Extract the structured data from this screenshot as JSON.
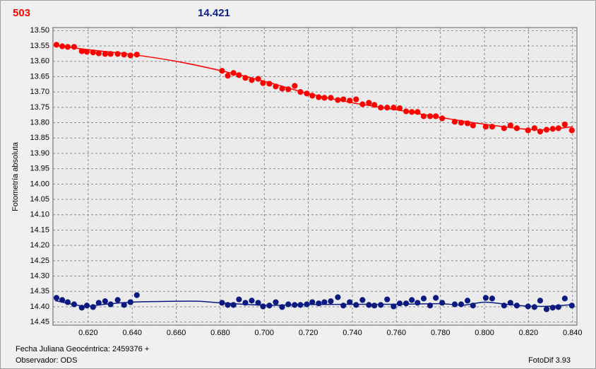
{
  "chart_data": {
    "type": "scatter",
    "label_left": "503",
    "label_right": "14.421",
    "y_label": "Fotometría absoluta",
    "footer_left_1": "Fecha Juliana Geocéntrica: 2459376 +",
    "footer_left_2": "Observador: ODS",
    "footer_right": "FotoDif 3.93",
    "label_left_color": "#ff0000",
    "label_right_color": "#0a1e8c",
    "y_inverted": true,
    "grid": true,
    "xlim": [
      0.604,
      0.842
    ],
    "ylim": [
      13.49,
      14.46
    ],
    "xticks": [
      {
        "value": 0.62,
        "label": "0.620"
      },
      {
        "value": 0.64,
        "label": "0.640"
      },
      {
        "value": 0.66,
        "label": "0.660"
      },
      {
        "value": 0.68,
        "label": "0.680"
      },
      {
        "value": 0.7,
        "label": "0.700"
      },
      {
        "value": 0.72,
        "label": "0.720"
      },
      {
        "value": 0.74,
        "label": "0.740"
      },
      {
        "value": 0.76,
        "label": "0.760"
      },
      {
        "value": 0.78,
        "label": "0.780"
      },
      {
        "value": 0.8,
        "label": "0.800"
      },
      {
        "value": 0.82,
        "label": "0.820"
      },
      {
        "value": 0.84,
        "label": "0.840"
      }
    ],
    "yticks": [
      {
        "value": 13.5,
        "label": "13.50"
      },
      {
        "value": 13.55,
        "label": "13.55"
      },
      {
        "value": 13.6,
        "label": "13.60"
      },
      {
        "value": 13.65,
        "label": "13.65"
      },
      {
        "value": 13.7,
        "label": "13.70"
      },
      {
        "value": 13.75,
        "label": "13.75"
      },
      {
        "value": 13.8,
        "label": "13.80"
      },
      {
        "value": 13.85,
        "label": "13.85"
      },
      {
        "value": 13.9,
        "label": "13.90"
      },
      {
        "value": 13.95,
        "label": "13.95"
      },
      {
        "value": 14.0,
        "label": "14.00"
      },
      {
        "value": 14.05,
        "label": "14.05"
      },
      {
        "value": 14.1,
        "label": "14.10"
      },
      {
        "value": 14.15,
        "label": "14.15"
      },
      {
        "value": 14.2,
        "label": "14.20"
      },
      {
        "value": 14.25,
        "label": "14.25"
      },
      {
        "value": 14.3,
        "label": "14.30"
      },
      {
        "value": 14.35,
        "label": "14.35"
      },
      {
        "value": 14.4,
        "label": "14.40"
      },
      {
        "value": 14.45,
        "label": "14.45"
      }
    ],
    "series": [
      {
        "color": "#ff0000",
        "x": [
          0.6056,
          0.6082,
          0.6107,
          0.6136,
          0.6171,
          0.6194,
          0.6222,
          0.6248,
          0.6277,
          0.6302,
          0.6334,
          0.6363,
          0.6392,
          0.6421,
          0.6808,
          0.6834,
          0.686,
          0.6885,
          0.6914,
          0.6943,
          0.6972,
          0.6994,
          0.7023,
          0.7052,
          0.7081,
          0.7109,
          0.7138,
          0.7164,
          0.7193,
          0.7218,
          0.7247,
          0.7273,
          0.7302,
          0.7334,
          0.7359,
          0.7388,
          0.7417,
          0.7446,
          0.7475,
          0.75,
          0.7529,
          0.7558,
          0.7587,
          0.7615,
          0.7644,
          0.767,
          0.7696,
          0.7724,
          0.7753,
          0.7779,
          0.7808,
          0.7865,
          0.7894,
          0.7923,
          0.7948,
          0.8006,
          0.8035,
          0.8089,
          0.8118,
          0.8147,
          0.8198,
          0.8227,
          0.8253,
          0.8282,
          0.831,
          0.8336,
          0.8365,
          0.8397
        ],
        "values": [
          13.546,
          13.551,
          13.553,
          13.553,
          13.567,
          13.569,
          13.571,
          13.574,
          13.576,
          13.576,
          13.576,
          13.578,
          13.581,
          13.578,
          13.631,
          13.647,
          13.638,
          13.645,
          13.654,
          13.661,
          13.657,
          13.671,
          13.673,
          13.682,
          13.689,
          13.691,
          13.68,
          13.7,
          13.705,
          13.712,
          13.717,
          13.719,
          13.719,
          13.726,
          13.724,
          13.728,
          13.724,
          13.74,
          13.735,
          13.742,
          13.751,
          13.751,
          13.751,
          13.753,
          13.763,
          13.765,
          13.765,
          13.779,
          13.779,
          13.779,
          13.786,
          13.797,
          13.8,
          13.802,
          13.809,
          13.813,
          13.813,
          13.818,
          13.809,
          13.818,
          13.825,
          13.818,
          13.829,
          13.823,
          13.82,
          13.818,
          13.806,
          13.825
        ]
      },
      {
        "color": "#0a1a80",
        "x": [
          0.6056,
          0.6082,
          0.6107,
          0.6136,
          0.6171,
          0.6194,
          0.6222,
          0.6248,
          0.6277,
          0.6302,
          0.6334,
          0.6363,
          0.6392,
          0.6421,
          0.6808,
          0.6834,
          0.686,
          0.6885,
          0.6914,
          0.6943,
          0.6972,
          0.6994,
          0.7023,
          0.7052,
          0.7081,
          0.7109,
          0.7138,
          0.7164,
          0.7193,
          0.7218,
          0.7247,
          0.7273,
          0.7302,
          0.7334,
          0.7359,
          0.7388,
          0.7417,
          0.7446,
          0.7475,
          0.75,
          0.7529,
          0.7558,
          0.7587,
          0.7615,
          0.7644,
          0.767,
          0.7696,
          0.7724,
          0.7753,
          0.7779,
          0.7808,
          0.7865,
          0.7894,
          0.7923,
          0.7948,
          0.8006,
          0.8035,
          0.8089,
          0.8118,
          0.8147,
          0.8198,
          0.8227,
          0.8253,
          0.8282,
          0.831,
          0.8336,
          0.8365,
          0.8397
        ],
        "values": [
          14.371,
          14.378,
          14.385,
          14.392,
          14.403,
          14.396,
          14.401,
          14.387,
          14.382,
          14.392,
          14.378,
          14.394,
          14.385,
          14.362,
          14.387,
          14.394,
          14.394,
          14.376,
          14.387,
          14.38,
          14.387,
          14.399,
          14.396,
          14.385,
          14.401,
          14.392,
          14.394,
          14.394,
          14.392,
          14.385,
          14.389,
          14.385,
          14.382,
          14.369,
          14.396,
          14.385,
          14.394,
          14.378,
          14.394,
          14.396,
          14.394,
          14.376,
          14.399,
          14.389,
          14.389,
          14.378,
          14.387,
          14.373,
          14.396,
          14.371,
          14.387,
          14.392,
          14.392,
          14.38,
          14.396,
          14.371,
          14.373,
          14.396,
          14.387,
          14.396,
          14.399,
          14.401,
          14.38,
          14.408,
          14.403,
          14.401,
          14.373,
          14.396
        ]
      }
    ],
    "lines": [
      {
        "color": "#ff0000",
        "x": [
          0.605,
          0.62,
          0.64,
          0.66,
          0.68,
          0.7,
          0.72,
          0.74,
          0.76,
          0.78,
          0.8,
          0.82,
          0.83,
          0.84
        ],
        "values": [
          13.548,
          13.562,
          13.578,
          13.6,
          13.63,
          13.665,
          13.705,
          13.735,
          13.758,
          13.783,
          13.805,
          13.822,
          13.822,
          13.813
        ]
      },
      {
        "color": "#0a1a80",
        "x": [
          0.605,
          0.615,
          0.62,
          0.63,
          0.64,
          0.65,
          0.66,
          0.67,
          0.68,
          0.7,
          0.72,
          0.74,
          0.76,
          0.78,
          0.79,
          0.8,
          0.81,
          0.82,
          0.83,
          0.84
        ],
        "values": [
          14.38,
          14.395,
          14.398,
          14.39,
          14.385,
          14.383,
          14.382,
          14.382,
          14.387,
          14.395,
          14.393,
          14.392,
          14.392,
          14.39,
          14.395,
          14.385,
          14.392,
          14.398,
          14.398,
          14.393
        ]
      }
    ]
  }
}
